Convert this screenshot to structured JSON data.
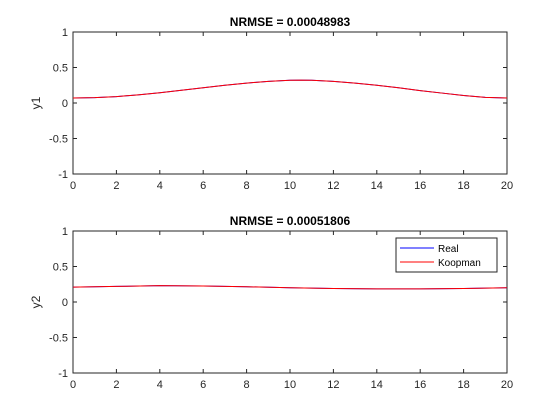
{
  "chart_data": [
    {
      "type": "line",
      "title": "NRMSE = 0.00048983",
      "xlabel": "",
      "ylabel": "y1",
      "xlim": [
        0,
        20
      ],
      "ylim": [
        -1,
        1
      ],
      "xticks": [
        "0",
        "2",
        "4",
        "6",
        "8",
        "10",
        "12",
        "14",
        "16",
        "18",
        "20"
      ],
      "yticks": [
        "-1",
        "-0.5",
        "0",
        "0.5",
        "1"
      ],
      "grid": false,
      "x": [
        0,
        1,
        2,
        3,
        4,
        5,
        6,
        7,
        8,
        9,
        10,
        10.5,
        11,
        12,
        13,
        14,
        15,
        16,
        17,
        18,
        19,
        20
      ],
      "series": [
        {
          "name": "Real",
          "color": "#0000ff",
          "values": [
            0.07,
            0.075,
            0.09,
            0.115,
            0.145,
            0.18,
            0.215,
            0.25,
            0.28,
            0.305,
            0.32,
            0.322,
            0.32,
            0.305,
            0.28,
            0.25,
            0.215,
            0.175,
            0.14,
            0.105,
            0.08,
            0.07
          ]
        },
        {
          "name": "Koopman",
          "color": "#ff0000",
          "values": [
            0.07,
            0.075,
            0.09,
            0.115,
            0.145,
            0.18,
            0.215,
            0.25,
            0.28,
            0.305,
            0.32,
            0.322,
            0.32,
            0.305,
            0.28,
            0.25,
            0.215,
            0.175,
            0.14,
            0.105,
            0.08,
            0.07
          ]
        }
      ]
    },
    {
      "type": "line",
      "title": "NRMSE = 0.00051806",
      "xlabel": "",
      "ylabel": "y2",
      "xlim": [
        0,
        20
      ],
      "ylim": [
        -1,
        1
      ],
      "xticks": [
        "0",
        "2",
        "4",
        "6",
        "8",
        "10",
        "12",
        "14",
        "16",
        "18",
        "20"
      ],
      "yticks": [
        "-1",
        "-0.5",
        "0",
        "0.5",
        "1"
      ],
      "grid": false,
      "legend": {
        "position": "top-right",
        "entries": [
          "Real",
          "Koopman"
        ]
      },
      "x": [
        0,
        2,
        4,
        6,
        8,
        10,
        12,
        14,
        16,
        18,
        20
      ],
      "series": [
        {
          "name": "Real",
          "color": "#0000ff",
          "values": [
            0.21,
            0.22,
            0.23,
            0.225,
            0.215,
            0.2,
            0.19,
            0.185,
            0.185,
            0.19,
            0.2
          ]
        },
        {
          "name": "Koopman",
          "color": "#ff0000",
          "values": [
            0.21,
            0.22,
            0.23,
            0.225,
            0.215,
            0.2,
            0.19,
            0.185,
            0.185,
            0.19,
            0.2
          ]
        }
      ]
    }
  ]
}
